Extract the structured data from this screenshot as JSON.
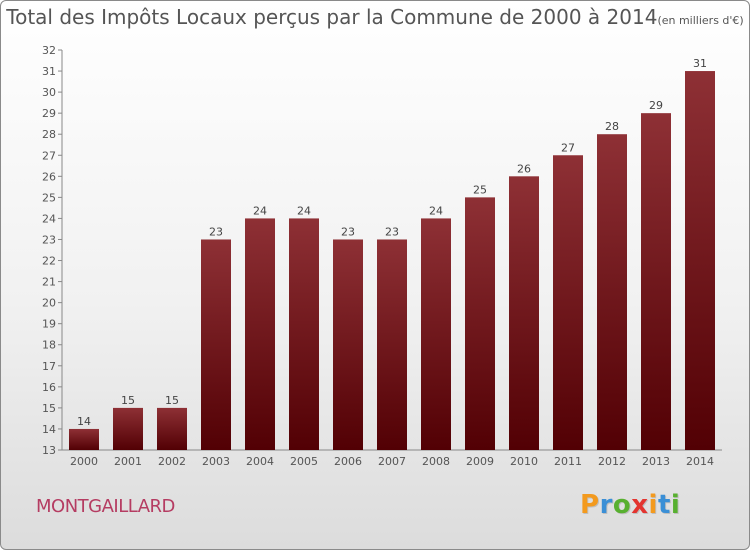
{
  "chart_data": {
    "type": "bar",
    "title": "Total des Impôts Locaux perçus par la Commune de 2000 à 2014",
    "unit_label": "(en milliers d'€)",
    "categories": [
      "2000",
      "2001",
      "2002",
      "2003",
      "2004",
      "2005",
      "2006",
      "2007",
      "2008",
      "2009",
      "2010",
      "2011",
      "2012",
      "2013",
      "2014"
    ],
    "values": [
      14,
      15,
      15,
      23,
      24,
      24,
      23,
      23,
      24,
      25,
      26,
      27,
      28,
      29,
      31
    ],
    "data_labels": [
      "14",
      "15",
      "15",
      "23",
      "24",
      "24",
      "23",
      "23",
      "24",
      "25",
      "26",
      "27",
      "28",
      "29",
      "31"
    ],
    "ylim": [
      13,
      32
    ],
    "yticks": [
      13,
      14,
      15,
      16,
      17,
      18,
      19,
      20,
      21,
      22,
      23,
      24,
      25,
      26,
      27,
      28,
      29,
      30,
      31,
      32
    ],
    "xlabel": "",
    "ylabel": "",
    "grid": false,
    "bar_color": "#7a1a1f"
  },
  "commune": "MONTGAILLARD",
  "logo": {
    "letters": [
      "P",
      "r",
      "o",
      "x",
      "i",
      "t",
      "i"
    ],
    "colors": [
      "#f39a1e",
      "#3a8fd6",
      "#58b030",
      "#e3342f",
      "#f39a1e",
      "#3a8fd6",
      "#58b030"
    ]
  }
}
